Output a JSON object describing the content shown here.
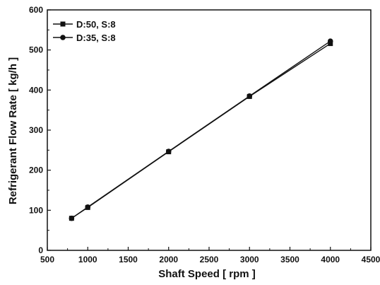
{
  "chart_data": {
    "type": "line",
    "xlabel": "Shaft Speed [ rpm ]",
    "ylabel": "Refrigerant Flow Rate [ kg/h ]",
    "xlim": [
      500,
      4500
    ],
    "ylim": [
      0,
      600
    ],
    "xticks": [
      500,
      1000,
      1500,
      2000,
      2500,
      3000,
      3500,
      4000,
      4500
    ],
    "yticks": [
      0,
      100,
      200,
      300,
      400,
      500,
      600
    ],
    "grid": false,
    "legend_position": "top-left",
    "series": [
      {
        "name": "D:50, S:8",
        "marker": "square",
        "color": "#111111",
        "x": [
          800,
          1000,
          2000,
          3000,
          4000
        ],
        "y": [
          80,
          107,
          246,
          384,
          516
        ]
      },
      {
        "name": "D:35, S:8",
        "marker": "circle",
        "color": "#111111",
        "x": [
          800,
          1000,
          2000,
          3000,
          4000
        ],
        "y": [
          80,
          108,
          247,
          385,
          522
        ]
      }
    ]
  }
}
